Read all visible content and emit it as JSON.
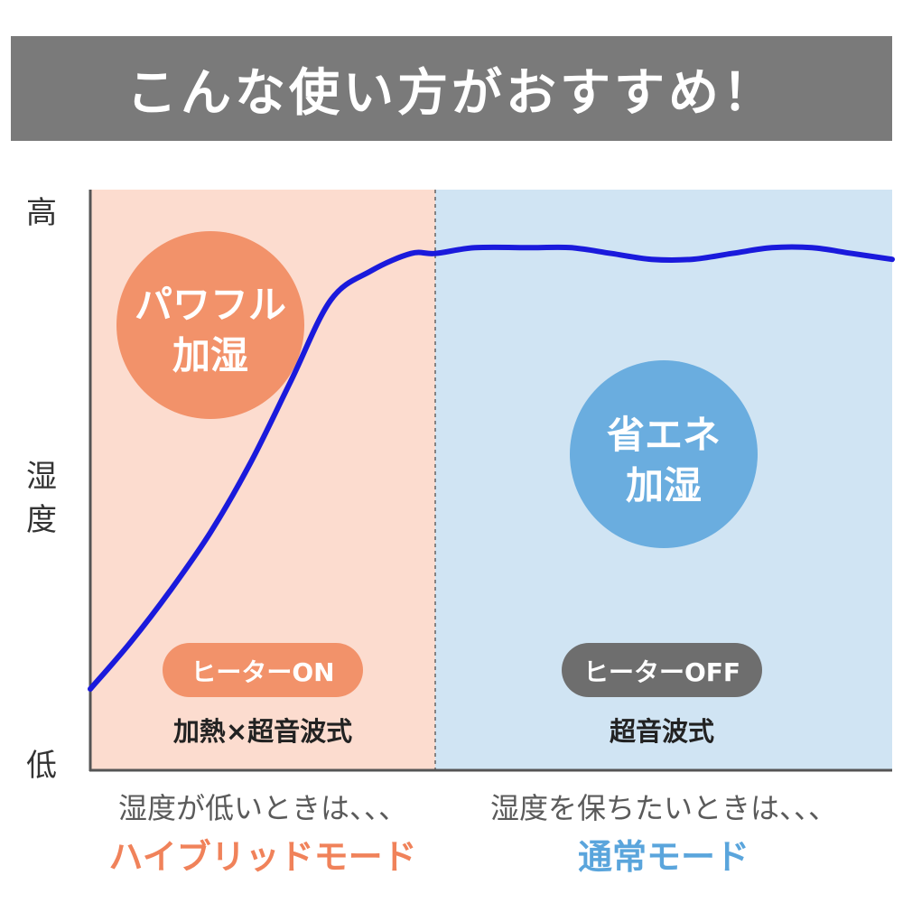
{
  "banner": {
    "title": "こんな使い方がおすすめ！"
  },
  "y_axis": {
    "top": "高",
    "label_line1": "湿",
    "label_line2": "度",
    "bottom": "低"
  },
  "colors": {
    "left_zone": "#fcdccf",
    "right_zone": "#d0e4f3",
    "curve": "#1a1adc",
    "orange_circle": "#f2926a",
    "blue_circle": "#6aaddf",
    "heater_on_pill": "#f2926a",
    "heater_off_pill": "#6e6e6e",
    "hybrid_text": "#f0825a",
    "normal_text": "#5aa5dc"
  },
  "chart_data": {
    "type": "line",
    "title": "",
    "xlabel": "",
    "ylabel": "湿度",
    "y_tick_labels": [
      "高",
      "低"
    ],
    "ylim": [
      0,
      1
    ],
    "x": [
      0.0,
      0.05,
      0.1,
      0.15,
      0.2,
      0.25,
      0.3,
      0.35,
      0.4,
      0.43,
      0.48,
      0.55,
      0.6,
      0.65,
      0.7,
      0.75,
      0.8,
      0.85,
      0.9,
      0.95,
      1.0
    ],
    "series": [
      {
        "values": [
          0.14,
          0.22,
          0.31,
          0.41,
          0.53,
          0.67,
          0.81,
          0.86,
          0.89,
          0.89,
          0.9,
          0.9,
          0.9,
          0.89,
          0.88,
          0.88,
          0.89,
          0.9,
          0.9,
          0.89,
          0.88
        ]
      }
    ],
    "zones": [
      {
        "circle_line1": "パワフル",
        "circle_line2": "加湿",
        "pill": "ヒーターON",
        "method": "加熱×超音波式",
        "footer_sub": "湿度が低いときは、、、",
        "footer_mode": "ハイブリッドモード"
      },
      {
        "circle_line1": "省エネ",
        "circle_line2": "加湿",
        "pill": "ヒーターOFF",
        "method": "超音波式",
        "footer_sub": "湿度を保ちたいときは、、、",
        "footer_mode": "通常モード"
      }
    ]
  }
}
